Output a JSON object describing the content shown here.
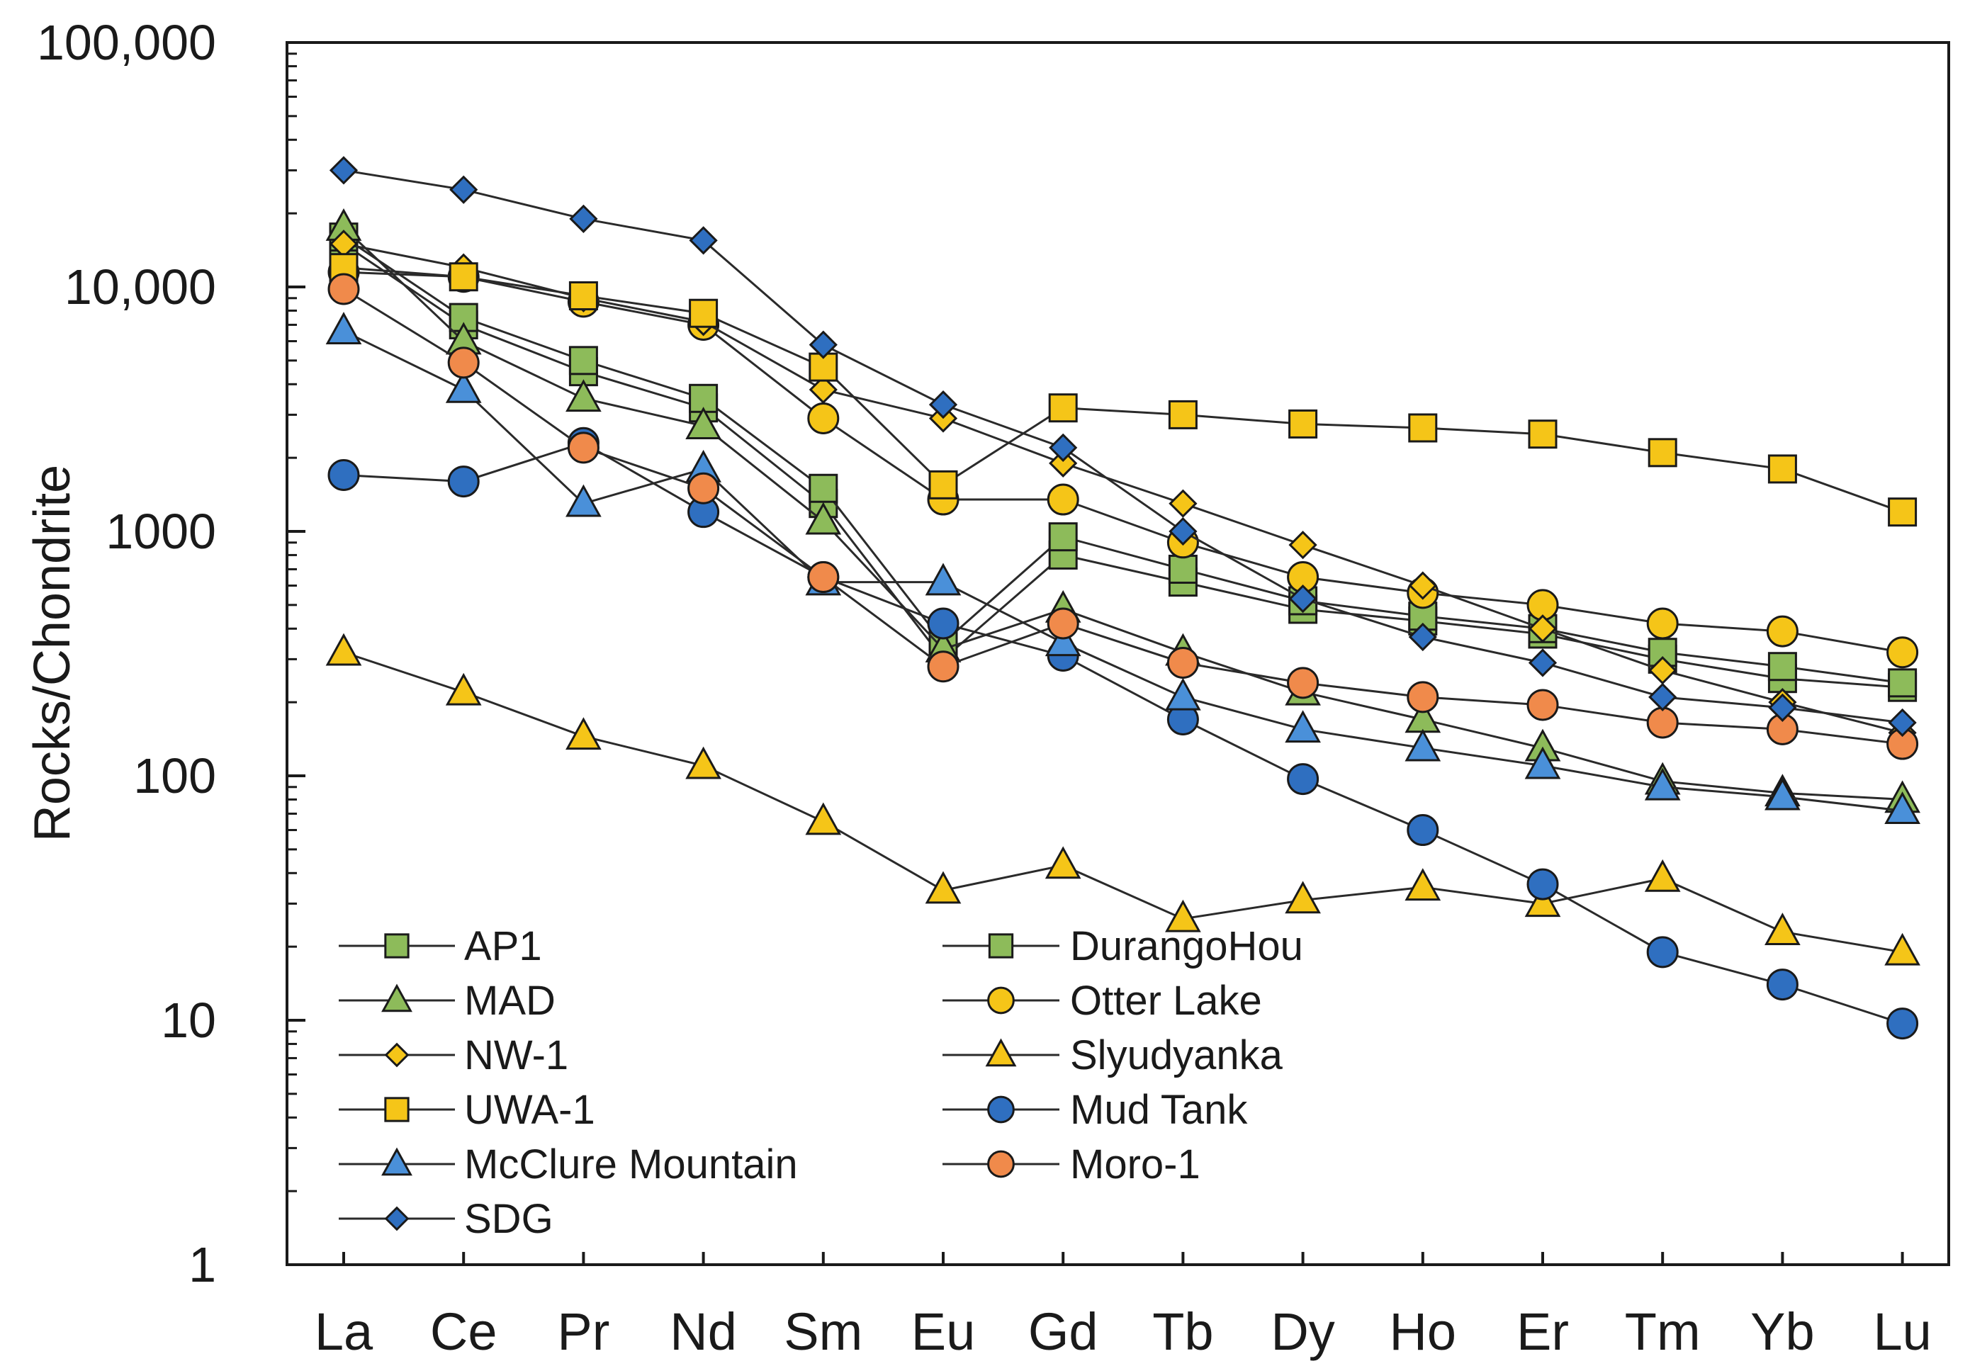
{
  "chart_data": {
    "type": "line",
    "title": "",
    "xlabel": "",
    "ylabel": "Rocks/Chondrite",
    "yscale": "log",
    "ylim": [
      1,
      100000
    ],
    "yticks": [
      1,
      10,
      100,
      1000,
      10000,
      100000
    ],
    "ytick_labels": [
      "1",
      "10",
      "100",
      "1000",
      "10,000",
      "100,000"
    ],
    "categories": [
      "La",
      "Ce",
      "Pr",
      "Nd",
      "Sm",
      "Eu",
      "Gd",
      "Tb",
      "Dy",
      "Ho",
      "Er",
      "Tm",
      "Yb",
      "Lu"
    ],
    "legend_position": "bottom-left",
    "colors": {
      "green": "#8dbb5a",
      "yellow": "#f5c518",
      "blue": "#2f6fc0",
      "lightblue": "#4a90d9",
      "orange": "#f08a4b"
    },
    "series": [
      {
        "name": "AP1",
        "marker": "square",
        "color": "#8dbb5a",
        "values": [
          15000,
          7000,
          4500,
          3200,
          1300,
          300,
          800,
          620,
          480,
          430,
          380,
          300,
          250,
          230
        ]
      },
      {
        "name": "DurangoHou",
        "marker": "square",
        "color": "#8dbb5a",
        "values": [
          16000,
          7500,
          5000,
          3500,
          1500,
          350,
          950,
          700,
          520,
          450,
          400,
          320,
          280,
          240
        ]
      },
      {
        "name": "MAD",
        "marker": "triangle",
        "color": "#8dbb5a",
        "values": [
          17500,
          6000,
          3500,
          2700,
          1100,
          330,
          480,
          320,
          220,
          170,
          130,
          95,
          85,
          80
        ]
      },
      {
        "name": "Otter Lake",
        "marker": "circle",
        "color": "#f5c518",
        "values": [
          11500,
          11000,
          8700,
          7000,
          2900,
          1350,
          1350,
          900,
          650,
          560,
          500,
          420,
          390,
          320
        ]
      },
      {
        "name": "NW-1",
        "marker": "diamond",
        "color": "#f5c518",
        "values": [
          15000,
          12000,
          9000,
          7200,
          3800,
          2900,
          1900,
          1300,
          880,
          600,
          400,
          270,
          200,
          150
        ]
      },
      {
        "name": "Slyudyanka",
        "marker": "triangle",
        "color": "#f5c518",
        "values": [
          320,
          220,
          145,
          110,
          65,
          34,
          43,
          26,
          31,
          35,
          30,
          38,
          23,
          19
        ]
      },
      {
        "name": "UWA-1",
        "marker": "square",
        "color": "#f5c518",
        "values": [
          12000,
          11000,
          9200,
          7800,
          4700,
          1550,
          3200,
          3000,
          2750,
          2650,
          2500,
          2100,
          1800,
          1200
        ]
      },
      {
        "name": "Mud Tank",
        "marker": "circle",
        "color": "#2f6fc0",
        "values": [
          1700,
          1600,
          2300,
          1200,
          650,
          420,
          310,
          170,
          97,
          60,
          36,
          19,
          14,
          9.7
        ]
      },
      {
        "name": "McClure Mountain",
        "marker": "triangle",
        "color": "#4a90d9",
        "values": [
          6600,
          3800,
          1300,
          1800,
          620,
          620,
          350,
          210,
          155,
          130,
          110,
          90,
          82,
          72
        ]
      },
      {
        "name": "Moro-1",
        "marker": "circle",
        "color": "#f08a4b",
        "values": [
          9800,
          4900,
          2200,
          1500,
          650,
          280,
          420,
          290,
          240,
          210,
          195,
          165,
          155,
          135
        ]
      },
      {
        "name": "SDG",
        "marker": "diamond",
        "color": "#2f6fc0",
        "values": [
          30000,
          25000,
          19000,
          15500,
          5800,
          3300,
          2200,
          1000,
          530,
          370,
          290,
          210,
          190,
          165
        ]
      }
    ]
  }
}
